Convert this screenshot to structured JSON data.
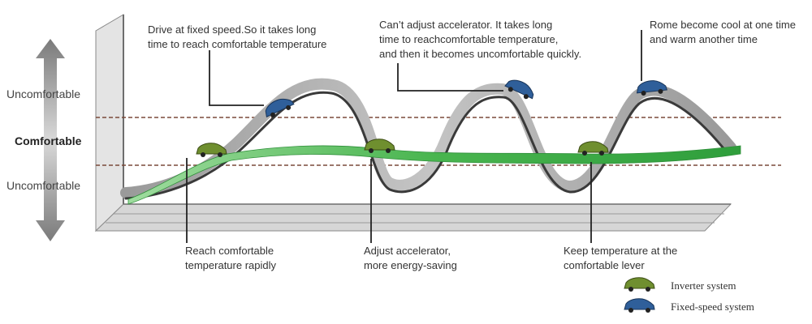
{
  "levels": {
    "top": "Uncomfortable",
    "middle": "Comfortable",
    "bottom": "Uncomfortable"
  },
  "annotations": {
    "fixed_speed_line1": "Drive at fixed speed.So it takes long",
    "fixed_speed_line2": "time to reach comfortable temperature",
    "accelerator_line1": "Can’t adjust accelerator. It takes long",
    "accelerator_line2": "time to reachcomfortable temperature,",
    "accelerator_line3": "and then it becomes uncomfortable quickly.",
    "room_line1": "Rome become cool at one time",
    "room_line2": "and warm another time"
  },
  "features": {
    "rapid_line1": "Reach comfortable",
    "rapid_line2": "temperature rapidly",
    "saving_line1": "Adjust accelerator,",
    "saving_line2": "more energy-saving",
    "keep_line1": "Keep temperature at the",
    "keep_line2": "comfortable lever"
  },
  "legend": {
    "inverter": "Inverter system",
    "fixed_speed": "Fixed-speed system"
  },
  "colors": {
    "inverter": "#3cae4a",
    "fixed_speed": "#8a8a8a",
    "comfort_band": "#7a4a3a",
    "car_green": "#6f8f2f",
    "car_blue": "#2f5f9a"
  }
}
